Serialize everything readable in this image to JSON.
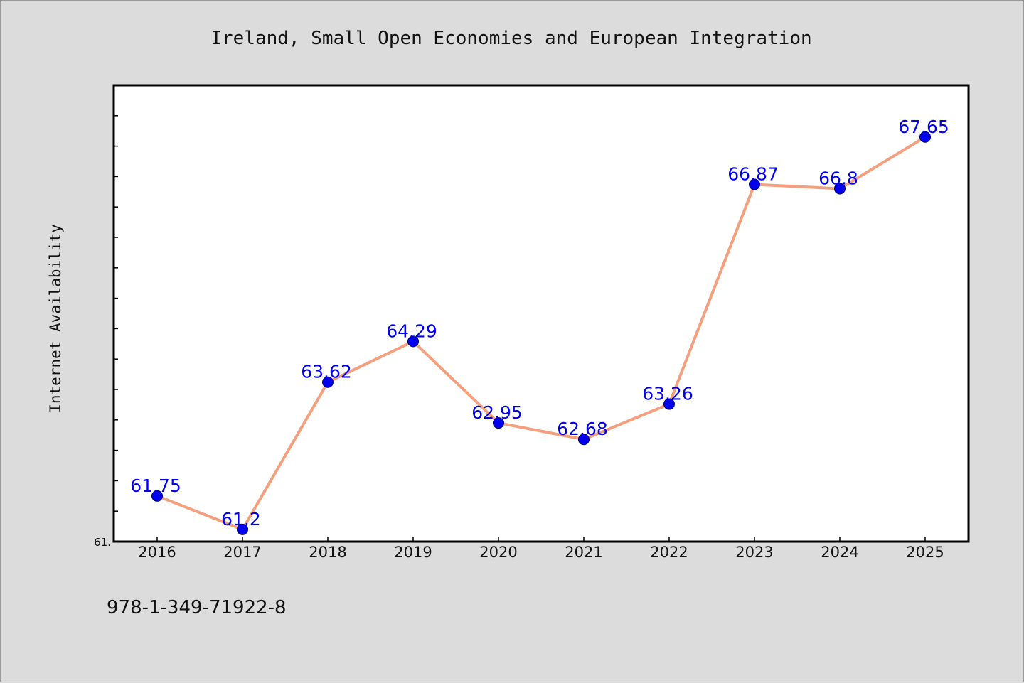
{
  "chart_data": {
    "type": "line",
    "title": "Ireland, Small Open Economies and European Integration",
    "xlabel": "",
    "ylabel": "Internet Availability",
    "categories": [
      "2016",
      "2017",
      "2018",
      "2019",
      "2020",
      "2021",
      "2022",
      "2023",
      "2024",
      "2025"
    ],
    "series": [
      {
        "values": [
          61.75,
          61.2,
          63.62,
          64.29,
          62.95,
          62.68,
          63.26,
          66.87,
          66.8,
          67.65
        ],
        "data_labels": [
          "61.75",
          "61.2",
          "63.62",
          "64.29",
          "62.95",
          "62.68",
          "63.26",
          "66.87",
          "66.8",
          "67.65"
        ]
      }
    ],
    "ylim": [
      61.0,
      68.5
    ],
    "y_min_label": "61.",
    "minor_tick_step": 0.5,
    "grid": false,
    "legend": "none",
    "colors": {
      "line": "#f4a07e",
      "marker": "#0000ee",
      "data_label": "#0000ee",
      "background": "#dcdcdc",
      "plot_area": "#ffffff"
    }
  },
  "footnote": "978-1-349-71922-8"
}
